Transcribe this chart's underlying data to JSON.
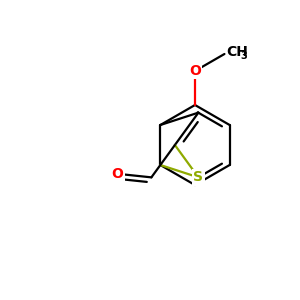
{
  "bg_color": "#ffffff",
  "bond_color_black": "#000000",
  "bond_color_sulfur": "#8faa00",
  "atom_color_O": "#ff0000",
  "atom_color_S": "#8faa00",
  "atom_color_C": "#000000",
  "bond_width": 1.6,
  "font_size_atom": 10,
  "text_O": "O",
  "text_S": "S",
  "text_CH": "CH",
  "text_3": "3"
}
